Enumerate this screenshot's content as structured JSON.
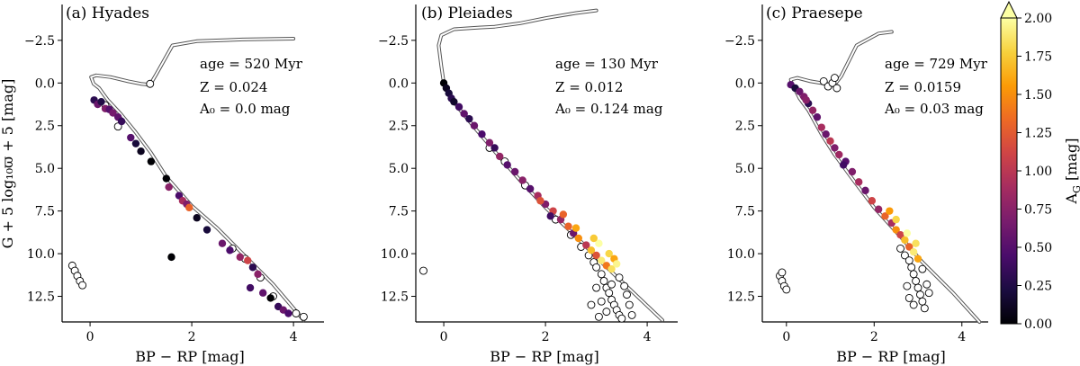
{
  "chart_data": [
    {
      "type": "scatter",
      "panel_title": "(a) Hyades",
      "xlabel": "BP − RP [mag]",
      "ylabel": "G + 5 log₁₀ϖ + 5 [mag]",
      "xlim": [
        -0.55,
        4.6
      ],
      "ylim": [
        14.0,
        -4.6
      ],
      "xticks": [
        0,
        2,
        4
      ],
      "xtick_labels": [
        "0",
        "2",
        "4"
      ],
      "yticks": [
        -2.5,
        0.0,
        2.5,
        5.0,
        7.5,
        10.0,
        12.5
      ],
      "ytick_labels": [
        "−2.5",
        "0.0",
        "2.5",
        "5.0",
        "7.5",
        "10.0",
        "12.5"
      ],
      "annotations": {
        "age": "age = 520 Myr",
        "Z": "Z = 0.024",
        "A0": "A₀ = 0.0 mag"
      },
      "isochrone": [
        [
          4.2,
          13.9
        ],
        [
          3.6,
          11.8
        ],
        [
          3.0,
          10.0
        ],
        [
          2.5,
          8.5
        ],
        [
          2.0,
          7.2
        ],
        [
          1.5,
          5.5
        ],
        [
          1.2,
          4.1
        ],
        [
          0.9,
          2.9
        ],
        [
          0.6,
          1.8
        ],
        [
          0.35,
          1.0
        ],
        [
          0.25,
          0.6
        ],
        [
          0.18,
          0.3
        ],
        [
          0.07,
          0.05
        ],
        [
          0.02,
          -0.35
        ],
        [
          0.12,
          -0.45
        ],
        [
          0.4,
          -0.35
        ],
        [
          0.75,
          -0.1
        ],
        [
          1.0,
          0.05
        ],
        [
          1.18,
          0.1
        ],
        [
          1.3,
          -0.5
        ],
        [
          1.62,
          -2.2
        ],
        [
          2.1,
          -2.45
        ],
        [
          3.0,
          -2.55
        ],
        [
          4.0,
          -2.6
        ]
      ],
      "points": [
        {
          "x": 0.08,
          "y": 1.0,
          "a": 0.3
        },
        {
          "x": 0.15,
          "y": 1.25,
          "a": 0.6
        },
        {
          "x": 0.22,
          "y": 1.1,
          "a": 0.25
        },
        {
          "x": 0.3,
          "y": 1.5,
          "a": 0.7
        },
        {
          "x": 0.38,
          "y": 1.55,
          "a": 0.5
        },
        {
          "x": 0.45,
          "y": 1.75,
          "a": 0.65
        },
        {
          "x": 0.55,
          "y": 2.0,
          "a": 0.55
        },
        {
          "x": 0.62,
          "y": 2.25,
          "a": 0.35
        },
        {
          "x": 0.8,
          "y": 3.2,
          "a": 0.5
        },
        {
          "x": 0.9,
          "y": 3.55,
          "a": 0.2
        },
        {
          "x": 1.0,
          "y": 4.0,
          "a": 0.1
        },
        {
          "x": 1.2,
          "y": 4.6,
          "a": 0.0
        },
        {
          "x": 1.5,
          "y": 5.6,
          "a": 0.0
        },
        {
          "x": 1.55,
          "y": 6.1,
          "a": 0.75
        },
        {
          "x": 1.75,
          "y": 6.6,
          "a": 0.45
        },
        {
          "x": 1.82,
          "y": 6.9,
          "a": 0.9
        },
        {
          "x": 1.9,
          "y": 7.1,
          "a": 0.7
        },
        {
          "x": 1.95,
          "y": 7.3,
          "a": 1.3
        },
        {
          "x": 2.1,
          "y": 7.9,
          "a": 0.1
        },
        {
          "x": 2.3,
          "y": 8.6,
          "a": 0.2
        },
        {
          "x": 2.6,
          "y": 9.4,
          "a": 0.6
        },
        {
          "x": 2.75,
          "y": 9.8,
          "a": 0.45
        },
        {
          "x": 2.95,
          "y": 10.2,
          "a": 0.8
        },
        {
          "x": 3.1,
          "y": 10.4,
          "a": 1.1
        },
        {
          "x": 3.2,
          "y": 10.8,
          "a": 0.3
        },
        {
          "x": 3.3,
          "y": 11.2,
          "a": 0.75
        },
        {
          "x": 3.15,
          "y": 12.0,
          "a": 0.4
        },
        {
          "x": 3.4,
          "y": 12.3,
          "a": 0.55
        },
        {
          "x": 3.55,
          "y": 12.6,
          "a": 0.0
        },
        {
          "x": 3.7,
          "y": 13.1,
          "a": 0.35
        },
        {
          "x": 3.8,
          "y": 13.3,
          "a": 0.6
        },
        {
          "x": 3.9,
          "y": 13.5,
          "a": 0.45
        },
        {
          "x": 1.6,
          "y": 10.2,
          "a": 0.0
        }
      ],
      "open_points": [
        [
          1.18,
          0.05
        ],
        [
          -0.35,
          10.7
        ],
        [
          -0.3,
          11.0
        ],
        [
          -0.25,
          11.3
        ],
        [
          -0.2,
          11.6
        ],
        [
          -0.15,
          11.85
        ],
        [
          0.3,
          1.3
        ],
        [
          0.55,
          2.55
        ],
        [
          2.8,
          9.7
        ],
        [
          3.05,
          10.3
        ],
        [
          3.35,
          11.4
        ],
        [
          3.6,
          12.5
        ],
        [
          4.05,
          13.5
        ],
        [
          4.2,
          13.7
        ]
      ]
    },
    {
      "type": "scatter",
      "panel_title": "(b) Pleiades",
      "xlabel": "BP − RP [mag]",
      "xlim": [
        -0.55,
        4.6
      ],
      "ylim": [
        14.0,
        -4.6
      ],
      "xticks": [
        0,
        2,
        4
      ],
      "xtick_labels": [
        "0",
        "2",
        "4"
      ],
      "yticks": [
        -2.5,
        0.0,
        2.5,
        5.0,
        7.5,
        10.0,
        12.5
      ],
      "ytick_labels": [
        "−2.5",
        "0.0",
        "2.5",
        "5.0",
        "7.5",
        "10.0",
        "12.5"
      ],
      "annotations": {
        "age": "age = 130 Myr",
        "Z": "Z = 0.012",
        "A0": "A₀ = 0.124 mag"
      },
      "isochrone": [
        [
          4.3,
          13.9
        ],
        [
          3.7,
          12.2
        ],
        [
          3.1,
          10.5
        ],
        [
          2.6,
          9.0
        ],
        [
          2.0,
          7.3
        ],
        [
          1.5,
          5.7
        ],
        [
          1.0,
          4.0
        ],
        [
          0.6,
          2.6
        ],
        [
          0.3,
          1.5
        ],
        [
          0.1,
          0.7
        ],
        [
          0.0,
          0.0
        ],
        [
          -0.05,
          -1.0
        ],
        [
          -0.1,
          -2.2
        ],
        [
          -0.05,
          -2.8
        ],
        [
          0.2,
          -3.15
        ],
        [
          0.7,
          -3.25
        ],
        [
          1.0,
          -3.3
        ],
        [
          1.5,
          -3.5
        ],
        [
          2.0,
          -3.8
        ],
        [
          2.6,
          -4.1
        ],
        [
          3.0,
          -4.25
        ]
      ],
      "points": [
        {
          "x": 0.0,
          "y": 0.0,
          "a": 0.0
        },
        {
          "x": 0.05,
          "y": 0.3,
          "a": 0.1
        },
        {
          "x": 0.1,
          "y": 0.6,
          "a": 0.2
        },
        {
          "x": 0.15,
          "y": 0.9,
          "a": 0.3
        },
        {
          "x": 0.2,
          "y": 1.1,
          "a": 0.15
        },
        {
          "x": 0.3,
          "y": 1.4,
          "a": 0.4
        },
        {
          "x": 0.4,
          "y": 1.8,
          "a": 0.55
        },
        {
          "x": 0.5,
          "y": 2.1,
          "a": 0.3
        },
        {
          "x": 0.6,
          "y": 2.5,
          "a": 0.6
        },
        {
          "x": 0.75,
          "y": 3.0,
          "a": 0.45
        },
        {
          "x": 0.9,
          "y": 3.5,
          "a": 0.7
        },
        {
          "x": 1.0,
          "y": 3.8,
          "a": 0.35
        },
        {
          "x": 1.1,
          "y": 4.3,
          "a": 0.8
        },
        {
          "x": 1.25,
          "y": 4.8,
          "a": 0.5
        },
        {
          "x": 1.4,
          "y": 5.2,
          "a": 0.6
        },
        {
          "x": 1.55,
          "y": 5.7,
          "a": 0.75
        },
        {
          "x": 1.7,
          "y": 6.2,
          "a": 0.5
        },
        {
          "x": 1.85,
          "y": 6.6,
          "a": 0.9
        },
        {
          "x": 2.0,
          "y": 7.1,
          "a": 0.7
        },
        {
          "x": 2.15,
          "y": 7.5,
          "a": 1.1
        },
        {
          "x": 2.3,
          "y": 8.0,
          "a": 0.8
        },
        {
          "x": 2.45,
          "y": 8.4,
          "a": 1.3
        },
        {
          "x": 2.55,
          "y": 8.8,
          "a": 0.6
        },
        {
          "x": 2.65,
          "y": 9.1,
          "a": 1.5
        },
        {
          "x": 2.8,
          "y": 9.5,
          "a": 1.0
        },
        {
          "x": 2.9,
          "y": 9.8,
          "a": 1.7
        },
        {
          "x": 3.0,
          "y": 10.1,
          "a": 1.2
        },
        {
          "x": 3.1,
          "y": 10.4,
          "a": 1.9
        },
        {
          "x": 3.2,
          "y": 10.7,
          "a": 1.4
        },
        {
          "x": 3.3,
          "y": 10.9,
          "a": 1.85
        },
        {
          "x": 3.05,
          "y": 9.4,
          "a": 2.0
        },
        {
          "x": 3.25,
          "y": 10.0,
          "a": 1.8
        },
        {
          "x": 2.6,
          "y": 8.5,
          "a": 1.6
        },
        {
          "x": 2.35,
          "y": 7.7,
          "a": 1.3
        },
        {
          "x": 2.95,
          "y": 9.1,
          "a": 1.75
        },
        {
          "x": 3.35,
          "y": 10.3,
          "a": 1.6
        },
        {
          "x": 1.9,
          "y": 6.9,
          "a": 1.2
        },
        {
          "x": 2.1,
          "y": 7.8,
          "a": 0.4
        },
        {
          "x": 3.4,
          "y": 10.6,
          "a": 1.95
        }
      ],
      "open_points": [
        [
          -0.4,
          11.0
        ],
        [
          0.9,
          3.8
        ],
        [
          1.2,
          4.6
        ],
        [
          1.6,
          6.0
        ],
        [
          2.2,
          8.0
        ],
        [
          2.5,
          8.9
        ],
        [
          2.7,
          9.6
        ],
        [
          2.85,
          10.1
        ],
        [
          2.95,
          10.5
        ],
        [
          3.0,
          10.8
        ],
        [
          3.1,
          11.2
        ],
        [
          3.15,
          11.6
        ],
        [
          3.2,
          12.0
        ],
        [
          3.25,
          12.3
        ],
        [
          3.3,
          12.7
        ],
        [
          3.35,
          13.0
        ],
        [
          3.4,
          13.3
        ],
        [
          3.45,
          13.6
        ],
        [
          3.5,
          13.8
        ],
        [
          3.0,
          12.0
        ],
        [
          3.1,
          12.8
        ],
        [
          3.2,
          13.4
        ],
        [
          3.6,
          12.4
        ],
        [
          3.65,
          13.0
        ],
        [
          3.55,
          11.9
        ],
        [
          3.45,
          11.4
        ],
        [
          2.9,
          13.0
        ],
        [
          3.05,
          13.7
        ],
        [
          3.7,
          13.6
        ],
        [
          3.3,
          11.8
        ]
      ]
    },
    {
      "type": "scatter",
      "panel_title": "(c) Praesepe",
      "xlabel": "BP − RP [mag]",
      "xlim": [
        -0.55,
        4.6
      ],
      "ylim": [
        14.0,
        -4.6
      ],
      "xticks": [
        0,
        2,
        4
      ],
      "xtick_labels": [
        "0",
        "2",
        "4"
      ],
      "yticks": [
        -2.5,
        0.0,
        2.5,
        5.0,
        7.5,
        10.0,
        12.5
      ],
      "ytick_labels": [
        "−2.5",
        "0.0",
        "2.5",
        "5.0",
        "7.5",
        "10.0",
        "12.5"
      ],
      "annotations": {
        "age": "age = 729 Myr",
        "Z": "Z = 0.0159",
        "A0": "A₀ = 0.03 mag"
      },
      "isochrone": [
        [
          4.4,
          14.0
        ],
        [
          3.8,
          12.3
        ],
        [
          3.1,
          10.5
        ],
        [
          2.6,
          9.0
        ],
        [
          2.0,
          7.3
        ],
        [
          1.5,
          5.6
        ],
        [
          1.1,
          4.2
        ],
        [
          0.8,
          3.0
        ],
        [
          0.5,
          1.6
        ],
        [
          0.3,
          0.9
        ],
        [
          0.2,
          0.4
        ],
        [
          0.12,
          0.05
        ],
        [
          0.1,
          -0.2
        ],
        [
          0.25,
          -0.3
        ],
        [
          0.55,
          -0.1
        ],
        [
          0.9,
          0.05
        ],
        [
          1.1,
          0.1
        ],
        [
          1.25,
          -0.4
        ],
        [
          1.6,
          -2.2
        ],
        [
          2.1,
          -2.9
        ],
        [
          2.4,
          -3.0
        ]
      ],
      "points": [
        {
          "x": 0.1,
          "y": 0.1,
          "a": 0.5
        },
        {
          "x": 0.2,
          "y": 0.3,
          "a": 0.2
        },
        {
          "x": 0.3,
          "y": 0.5,
          "a": 0.6
        },
        {
          "x": 0.4,
          "y": 0.8,
          "a": 0.7
        },
        {
          "x": 0.5,
          "y": 1.2,
          "a": 0.3
        },
        {
          "x": 0.6,
          "y": 1.6,
          "a": 0.8
        },
        {
          "x": 0.7,
          "y": 2.0,
          "a": 0.55
        },
        {
          "x": 0.8,
          "y": 2.6,
          "a": 0.9
        },
        {
          "x": 0.9,
          "y": 3.0,
          "a": 0.6
        },
        {
          "x": 1.0,
          "y": 3.4,
          "a": 1.0
        },
        {
          "x": 1.1,
          "y": 3.8,
          "a": 0.7
        },
        {
          "x": 1.2,
          "y": 4.2,
          "a": 0.85
        },
        {
          "x": 1.35,
          "y": 4.6,
          "a": 0.5
        },
        {
          "x": 1.5,
          "y": 5.2,
          "a": 0.7
        },
        {
          "x": 1.65,
          "y": 5.8,
          "a": 0.9
        },
        {
          "x": 1.8,
          "y": 6.3,
          "a": 0.6
        },
        {
          "x": 1.95,
          "y": 6.9,
          "a": 1.1
        },
        {
          "x": 2.1,
          "y": 7.4,
          "a": 0.8
        },
        {
          "x": 2.25,
          "y": 7.8,
          "a": 1.3
        },
        {
          "x": 2.4,
          "y": 8.2,
          "a": 0.9
        },
        {
          "x": 2.5,
          "y": 8.6,
          "a": 1.5
        },
        {
          "x": 2.6,
          "y": 8.9,
          "a": 1.1
        },
        {
          "x": 2.7,
          "y": 9.2,
          "a": 1.7
        },
        {
          "x": 2.8,
          "y": 9.6,
          "a": 1.3
        },
        {
          "x": 2.9,
          "y": 9.9,
          "a": 1.9
        },
        {
          "x": 3.0,
          "y": 10.3,
          "a": 1.6
        },
        {
          "x": 2.5,
          "y": 8.0,
          "a": 1.8
        },
        {
          "x": 2.75,
          "y": 8.8,
          "a": 2.0
        },
        {
          "x": 2.95,
          "y": 9.4,
          "a": 1.85
        },
        {
          "x": 2.35,
          "y": 7.5,
          "a": 1.55
        },
        {
          "x": 1.3,
          "y": 4.8,
          "a": 0.4
        },
        {
          "x": 0.45,
          "y": 1.0,
          "a": 0.75
        }
      ],
      "open_points": [
        [
          0.85,
          -0.1
        ],
        [
          0.95,
          0.2
        ],
        [
          1.05,
          0.0
        ],
        [
          1.1,
          -0.3
        ],
        [
          1.15,
          0.3
        ],
        [
          -0.15,
          11.3
        ],
        [
          -0.1,
          11.6
        ],
        [
          -0.05,
          11.9
        ],
        [
          0.0,
          12.1
        ],
        [
          -0.1,
          11.1
        ],
        [
          2.6,
          9.7
        ],
        [
          2.7,
          10.1
        ],
        [
          2.8,
          10.4
        ],
        [
          2.85,
          10.8
        ],
        [
          2.9,
          11.2
        ],
        [
          2.95,
          11.6
        ],
        [
          3.0,
          12.0
        ],
        [
          3.05,
          12.4
        ],
        [
          3.1,
          12.8
        ],
        [
          3.15,
          13.2
        ],
        [
          2.8,
          12.6
        ],
        [
          2.9,
          13.0
        ],
        [
          3.2,
          11.8
        ],
        [
          3.25,
          12.3
        ],
        [
          2.75,
          11.9
        ],
        [
          3.1,
          10.9
        ]
      ]
    }
  ],
  "colorbar": {
    "label": "A_G [mag]",
    "label_main": "A",
    "label_sub": "G",
    "label_rest": " [mag]",
    "min": 0.0,
    "max": 2.0,
    "extend": "max",
    "ticks": [
      0.0,
      0.25,
      0.5,
      0.75,
      1.0,
      1.25,
      1.5,
      1.75,
      2.0
    ],
    "tick_labels": [
      "0.00",
      "0.25",
      "0.50",
      "0.75",
      "1.00",
      "1.25",
      "1.50",
      "1.75",
      "2.00"
    ],
    "colormap": [
      "#000004",
      "#1b0c41",
      "#4a0c6b",
      "#781c6d",
      "#a52c60",
      "#cf4446",
      "#ed6925",
      "#fb9b06",
      "#f7d13d",
      "#fcffa4"
    ]
  }
}
